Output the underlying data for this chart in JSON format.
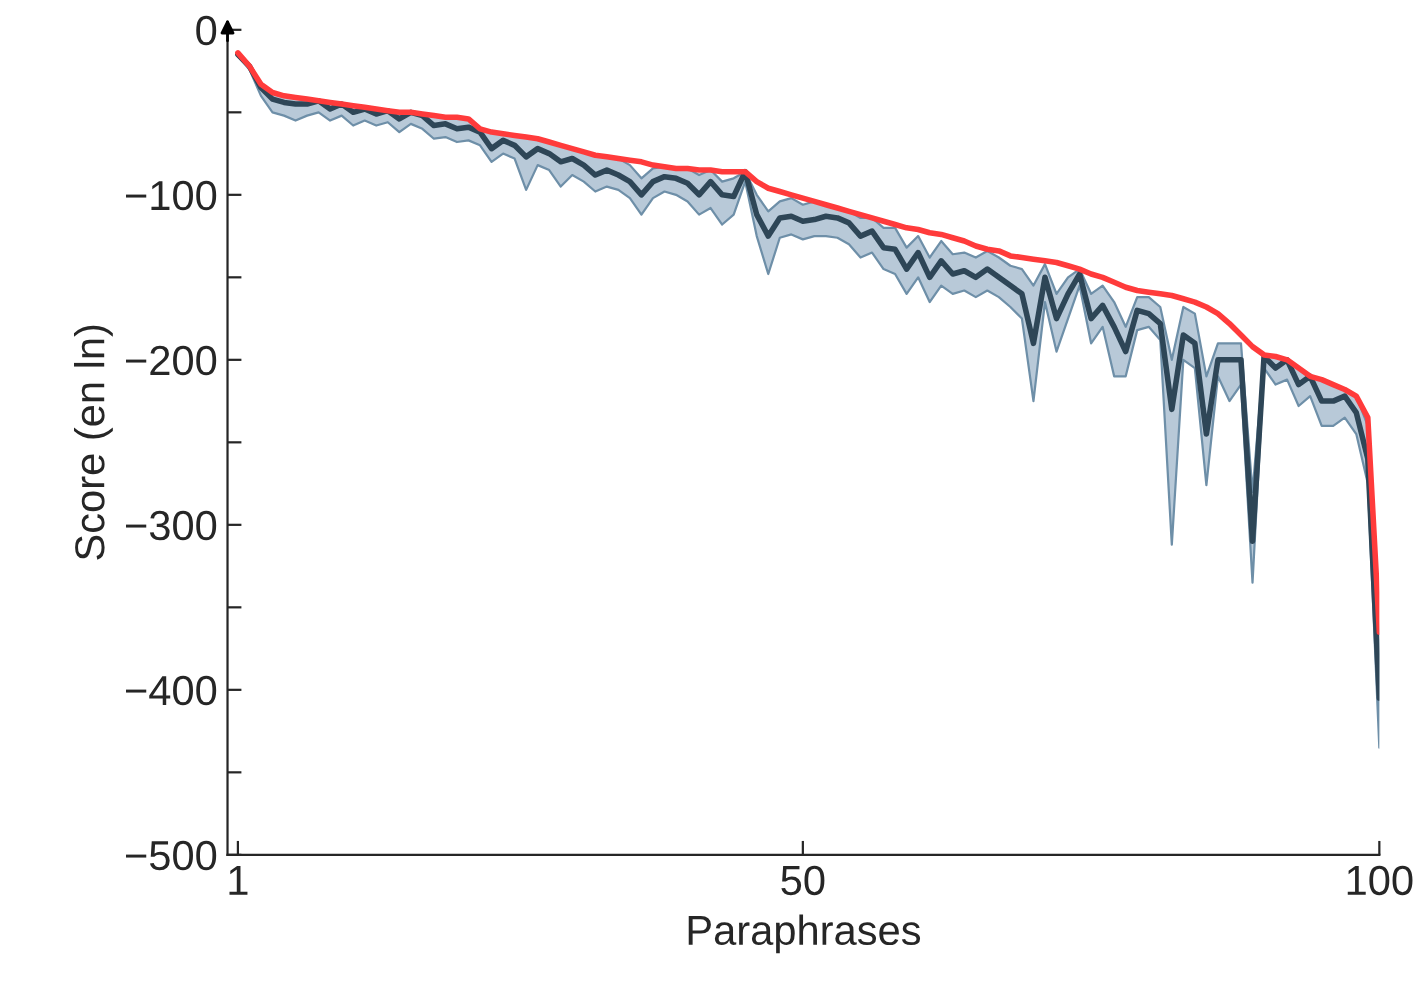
{
  "chart_data": {
    "type": "line",
    "xlabel": "Paraphrases",
    "ylabel": "Score (en ln)",
    "x": [
      1,
      2,
      3,
      4,
      5,
      6,
      7,
      8,
      9,
      10,
      11,
      12,
      13,
      14,
      15,
      16,
      17,
      18,
      19,
      20,
      21,
      22,
      23,
      24,
      25,
      26,
      27,
      28,
      29,
      30,
      31,
      32,
      33,
      34,
      35,
      36,
      37,
      38,
      39,
      40,
      41,
      42,
      43,
      44,
      45,
      46,
      47,
      48,
      49,
      50,
      51,
      52,
      53,
      54,
      55,
      56,
      57,
      58,
      59,
      60,
      61,
      62,
      63,
      64,
      65,
      66,
      67,
      68,
      69,
      70,
      71,
      72,
      73,
      74,
      75,
      76,
      77,
      78,
      79,
      80,
      81,
      82,
      83,
      84,
      85,
      86,
      87,
      88,
      89,
      90,
      91,
      92,
      93,
      94,
      95,
      96,
      97,
      98,
      99,
      100
    ],
    "series": [
      {
        "color": "#ff3b3b",
        "values": [
          -14,
          -22,
          -33,
          -38,
          -40,
          -41,
          -42,
          -43,
          -44,
          -45,
          -46,
          -47,
          -48,
          -49,
          -50,
          -50,
          -51,
          -52,
          -53,
          -53,
          -54,
          -60,
          -62,
          -63,
          -64,
          -65,
          -66,
          -68,
          -70,
          -72,
          -74,
          -76,
          -77,
          -78,
          -79,
          -80,
          -82,
          -83,
          -84,
          -84,
          -85,
          -85,
          -86,
          -86,
          -86,
          -92,
          -96,
          -98,
          -100,
          -102,
          -104,
          -106,
          -108,
          -110,
          -112,
          -114,
          -116,
          -118,
          -120,
          -121,
          -123,
          -124,
          -126,
          -128,
          -131,
          -133,
          -134,
          -137,
          -138,
          -139,
          -140,
          -141,
          -143,
          -145,
          -148,
          -150,
          -153,
          -156,
          -158,
          -159,
          -160,
          -161,
          -163,
          -165,
          -168,
          -172,
          -178,
          -185,
          -192,
          -197,
          -198,
          -200,
          -205,
          -210,
          -212,
          -215,
          -218,
          -222,
          -235,
          -365
        ]
      },
      {
        "color": "#2e4657",
        "values": [
          -15,
          -22,
          -35,
          -42,
          -44,
          -45,
          -45,
          -43,
          -48,
          -45,
          -50,
          -48,
          -51,
          -49,
          -54,
          -50,
          -52,
          -58,
          -57,
          -60,
          -59,
          -62,
          -72,
          -67,
          -70,
          -77,
          -72,
          -75,
          -80,
          -78,
          -82,
          -88,
          -85,
          -88,
          -92,
          -100,
          -92,
          -89,
          -90,
          -93,
          -100,
          -92,
          -100,
          -101,
          -86,
          -112,
          -125,
          -114,
          -113,
          -116,
          -115,
          -113,
          -114,
          -117,
          -125,
          -122,
          -132,
          -133,
          -145,
          -135,
          -150,
          -140,
          -148,
          -146,
          -150,
          -145,
          -150,
          -155,
          -160,
          -190,
          -150,
          -175,
          -160,
          -148,
          -175,
          -167,
          -180,
          -195,
          -170,
          -172,
          -178,
          -230,
          -185,
          -190,
          -245,
          -200,
          -200,
          -200,
          -310,
          -198,
          -205,
          -200,
          -215,
          -210,
          -225,
          -225,
          -222,
          -232,
          -260,
          -405
        ],
        "lower": [
          -16,
          -24,
          -40,
          -50,
          -52,
          -55,
          -52,
          -50,
          -55,
          -52,
          -58,
          -55,
          -58,
          -56,
          -62,
          -57,
          -60,
          -66,
          -65,
          -68,
          -67,
          -70,
          -80,
          -75,
          -78,
          -97,
          -82,
          -85,
          -95,
          -88,
          -92,
          -98,
          -95,
          -97,
          -102,
          -112,
          -102,
          -98,
          -100,
          -104,
          -112,
          -108,
          -118,
          -112,
          -92,
          -125,
          -148,
          -126,
          -124,
          -127,
          -125,
          -125,
          -126,
          -130,
          -138,
          -135,
          -145,
          -148,
          -160,
          -150,
          -165,
          -155,
          -160,
          -158,
          -162,
          -158,
          -162,
          -168,
          -175,
          -225,
          -165,
          -195,
          -175,
          -155,
          -190,
          -180,
          -210,
          -210,
          -182,
          -180,
          -188,
          -312,
          -200,
          -205,
          -276,
          -210,
          -225,
          -215,
          -335,
          -205,
          -215,
          -212,
          -228,
          -222,
          -240,
          -240,
          -235,
          -245,
          -275,
          -435
        ],
        "upper": [
          -14,
          -22,
          -33,
          -38,
          -40,
          -41,
          -42,
          -43,
          -44,
          -45,
          -46,
          -47,
          -48,
          -49,
          -50,
          -50,
          -51,
          -52,
          -53,
          -53,
          -54,
          -60,
          -62,
          -63,
          -64,
          -65,
          -66,
          -68,
          -70,
          -72,
          -74,
          -76,
          -77,
          -78,
          -82,
          -90,
          -84,
          -83,
          -84,
          -84,
          -88,
          -85,
          -92,
          -90,
          -86,
          -100,
          -110,
          -104,
          -102,
          -106,
          -104,
          -106,
          -108,
          -110,
          -114,
          -114,
          -120,
          -120,
          -132,
          -125,
          -138,
          -128,
          -136,
          -135,
          -138,
          -134,
          -138,
          -143,
          -145,
          -155,
          -142,
          -160,
          -150,
          -145,
          -160,
          -155,
          -165,
          -180,
          -162,
          -162,
          -168,
          -200,
          -168,
          -172,
          -210,
          -190,
          -190,
          -190,
          -280,
          -197,
          -198,
          -200,
          -205,
          -210,
          -212,
          -215,
          -218,
          -222,
          -240,
          -375
        ]
      }
    ],
    "xlim": [
      0.1,
      100
    ],
    "ylim": [
      -500,
      0
    ],
    "xticks": [
      1,
      50,
      100
    ],
    "yticks": [
      -500,
      {
        "value": -450,
        "label": null
      },
      {
        "value": -400,
        "label": "−400"
      },
      {
        "value": -350,
        "label": null
      },
      {
        "value": -300,
        "label": "−300"
      },
      {
        "value": -250,
        "label": null
      },
      {
        "value": -200,
        "label": "−200"
      },
      {
        "value": -150,
        "label": null
      },
      {
        "value": -100,
        "label": "−100"
      },
      {
        "value": -50,
        "label": null
      },
      0
    ],
    "grid": false,
    "legend": false
  }
}
